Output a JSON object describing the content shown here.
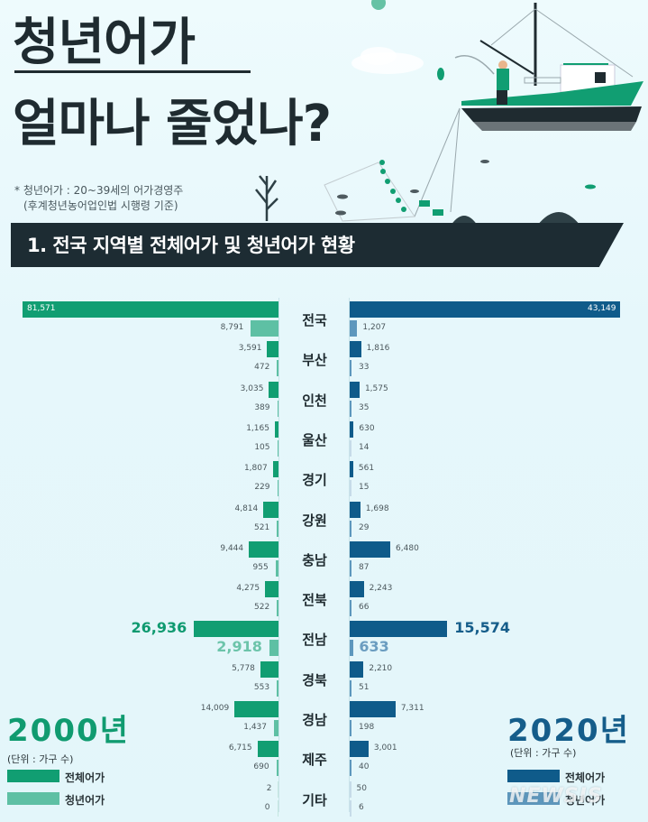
{
  "header": {
    "title_line1": "청년어가",
    "title_line2": "얼마나 줄었나?",
    "footnote_line1": "* 청년어가 : 20~39세의 어가경영주",
    "footnote_line2": "(후계청년농어업인법 시행령 기준)"
  },
  "section": {
    "banner": "1. 전국 지역별 전체어가 및 청년어가 현황"
  },
  "left_panel": {
    "year": "2000년",
    "unit": "(단위 : 가구 수)",
    "legend_total": "전체어가",
    "legend_youth": "청년어가",
    "color_total": "#119e72",
    "color_youth": "#5ec0a4"
  },
  "right_panel": {
    "year": "2020년",
    "unit": "(단위 : 가구 수)",
    "legend_total": "전체어가",
    "legend_youth": "청년어가",
    "color_total": "#0f5b8a",
    "color_youth": "#5d97bd"
  },
  "watermark": "NEWSIS",
  "chart_data": {
    "type": "bar",
    "orientation": "horizontal-butterfly",
    "title": "1. 전국 지역별 전체어가 및 청년어가 현황",
    "unit": "가구 수",
    "categories": [
      "전국",
      "부산",
      "인천",
      "울산",
      "경기",
      "강원",
      "충남",
      "전북",
      "전남",
      "경북",
      "경남",
      "제주",
      "기타"
    ],
    "series": [
      {
        "name": "2000년 전체어가",
        "side": "left",
        "values": [
          81571,
          3591,
          3035,
          1165,
          1807,
          4814,
          9444,
          4275,
          26936,
          5778,
          14009,
          6715,
          2
        ]
      },
      {
        "name": "2000년 청년어가",
        "side": "left",
        "values": [
          8791,
          472,
          389,
          105,
          229,
          521,
          955,
          522,
          2918,
          553,
          1437,
          690,
          0
        ]
      },
      {
        "name": "2020년 전체어가",
        "side": "right",
        "values": [
          43149,
          1816,
          1575,
          630,
          561,
          1698,
          6480,
          2243,
          15574,
          2210,
          7311,
          3001,
          50
        ]
      },
      {
        "name": "2020년 청년어가",
        "side": "right",
        "values": [
          1207,
          33,
          35,
          14,
          15,
          29,
          87,
          66,
          633,
          51,
          198,
          40,
          6
        ]
      }
    ],
    "labels": {
      "left_total": [
        "81,571",
        "3,591",
        "3,035",
        "1,165",
        "1,807",
        "4,814",
        "9,444",
        "4,275",
        "26,936",
        "5,778",
        "14,009",
        "6,715",
        "2"
      ],
      "left_youth": [
        "8,791",
        "472",
        "389",
        "105",
        "229",
        "521",
        "955",
        "522",
        "2,918",
        "553",
        "1,437",
        "690",
        "0"
      ],
      "right_total": [
        "43,149",
        "1,816",
        "1,575",
        "630",
        "561",
        "1,698",
        "6,480",
        "2,243",
        "15,574",
        "2,210",
        "7,311",
        "3,001",
        "50"
      ],
      "right_youth": [
        "1,207",
        "33",
        "35",
        "14",
        "15",
        "29",
        "87",
        "66",
        "633",
        "51",
        "198",
        "40",
        "6"
      ]
    },
    "legend": [
      "전체어가",
      "청년어가"
    ],
    "highlight_category": "전남"
  }
}
